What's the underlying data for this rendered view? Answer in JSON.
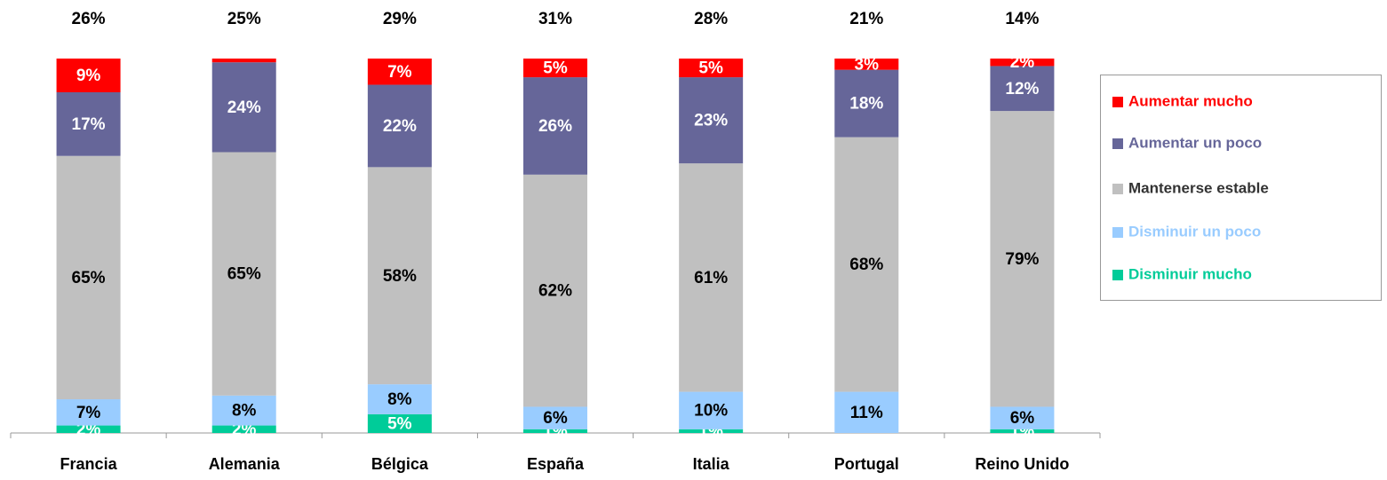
{
  "chart_data": {
    "type": "stacked_bar",
    "categories": [
      "Francia",
      "Alemania",
      "Bélgica",
      "España",
      "Italia",
      "Portugal",
      "Reino Unido"
    ],
    "annotations": [
      "26%",
      "25%",
      "29%",
      "31%",
      "28%",
      "21%",
      "14%"
    ],
    "ylim": [
      0,
      100
    ],
    "legend": "right",
    "series": [
      {
        "name": "Disminuir mucho",
        "color": "#00cc99",
        "label_color": "#ffffff",
        "legend_text_color": "#00cc99",
        "values": [
          2,
          2,
          5,
          1,
          1,
          0,
          1
        ],
        "value_labels": [
          "2%",
          "2%",
          "5%",
          "1%",
          "1%",
          null,
          "1%"
        ]
      },
      {
        "name": "Disminuir un poco",
        "color": "#99ccff",
        "label_color": "#000000",
        "legend_text_color": "#99ccff",
        "values": [
          7,
          8,
          8,
          6,
          10,
          11,
          6
        ],
        "value_labels": [
          "7%",
          "8%",
          "8%",
          "6%",
          "10%",
          "11%",
          "6%"
        ]
      },
      {
        "name": "Mantenerse estable",
        "color": "#c0c0c0",
        "label_color": "#000000",
        "legend_text_color": "#333333",
        "values": [
          65,
          65,
          58,
          62,
          61,
          68,
          79
        ],
        "value_labels": [
          "65%",
          "65%",
          "58%",
          "62%",
          "61%",
          "68%",
          "79%"
        ]
      },
      {
        "name": "Aumentar un poco",
        "color": "#666699",
        "label_color": "#ffffff",
        "legend_text_color": "#666699",
        "values": [
          17,
          24,
          22,
          26,
          23,
          18,
          12
        ],
        "value_labels": [
          "17%",
          "24%",
          "22%",
          "26%",
          "23%",
          "18%",
          "12%"
        ]
      },
      {
        "name": "Aumentar mucho",
        "color": "#ff0000",
        "label_color": "#ffffff",
        "legend_text_color": "#ff0000",
        "values": [
          9,
          1,
          7,
          5,
          5,
          3,
          2
        ],
        "value_labels": [
          "9%",
          null,
          "7%",
          "5%",
          "5%",
          "3%",
          "2%"
        ]
      }
    ]
  }
}
